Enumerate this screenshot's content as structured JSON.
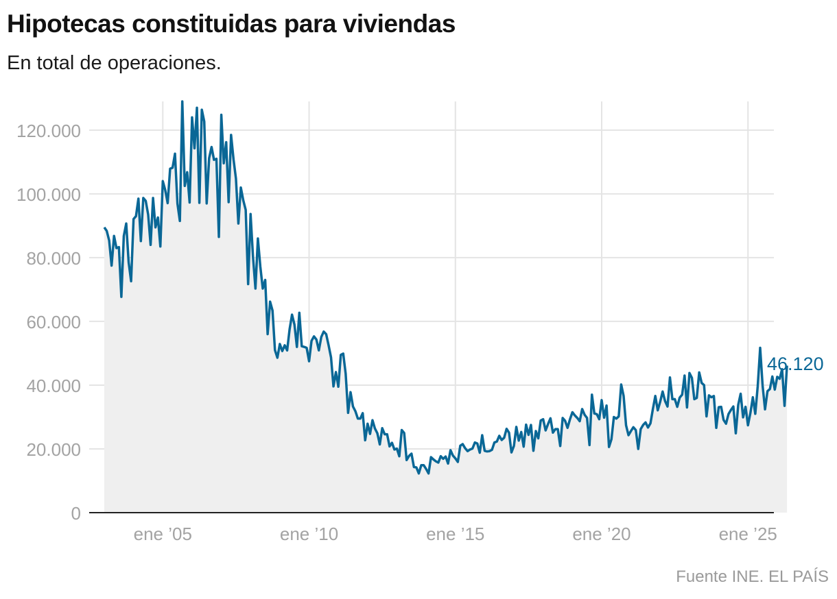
{
  "header": {
    "title": "Hipotecas constituidas para viviendas",
    "subtitle": "En total de operaciones."
  },
  "footer": {
    "source": "Fuente INE. EL PAÍS"
  },
  "colors": {
    "line": "#0a6796",
    "area": "#efefef",
    "grid": "#e4e4e4",
    "axis": "#222222",
    "tick_text": "#a3a3a3"
  },
  "chart_data": {
    "type": "area",
    "title": "Hipotecas constituidas para viviendas",
    "subtitle": "En total de operaciones.",
    "x_axis": {
      "type": "time",
      "range": [
        "2003-01",
        "2025-06"
      ],
      "ticks": [
        {
          "date": "2005-01",
          "label": "ene ’05"
        },
        {
          "date": "2010-01",
          "label": "ene ’10"
        },
        {
          "date": "2015-01",
          "label": "ene ’15"
        },
        {
          "date": "2020-01",
          "label": "ene ’20"
        },
        {
          "date": "2025-01",
          "label": "ene ’25"
        }
      ]
    },
    "y_axis": {
      "range": [
        0,
        129000
      ],
      "ticks": [
        {
          "value": 0,
          "label": "0"
        },
        {
          "value": 20000,
          "label": "20.000"
        },
        {
          "value": 40000,
          "label": "40.000"
        },
        {
          "value": 60000,
          "label": "60.000"
        },
        {
          "value": 80000,
          "label": "80.000"
        },
        {
          "value": 100000,
          "label": "100.000"
        },
        {
          "value": 120000,
          "label": "120.000"
        }
      ]
    },
    "grid": true,
    "last_value_label": "46.120",
    "series": [
      {
        "start": "2003-01",
        "frequency": "monthly",
        "values": [
          89500,
          88400,
          85400,
          77500,
          86800,
          83000,
          83300,
          67700,
          86800,
          90700,
          78500,
          72600,
          92100,
          93000,
          98500,
          85200,
          98700,
          97800,
          93500,
          84000,
          98700,
          89500,
          92600,
          83500,
          104000,
          101200,
          97100,
          107900,
          108200,
          112600,
          97000,
          91500,
          129000,
          102500,
          106800,
          97300,
          124000,
          114300,
          127000,
          97200,
          126400,
          122700,
          97000,
          111200,
          114700,
          110700,
          111000,
          86500,
          124800,
          109600,
          116200,
          97400,
          118500,
          110900,
          104800,
          90700,
          102000,
          98000,
          95000,
          71700,
          93700,
          80200,
          70300,
          86000,
          77200,
          70300,
          73000,
          56000,
          66200,
          63400,
          51000,
          48600,
          52900,
          50700,
          52500,
          50900,
          57500,
          62100,
          59000,
          52000,
          62700,
          52200,
          52000,
          51700,
          47500,
          53900,
          55300,
          54300,
          50900,
          55100,
          56800,
          56000,
          52500,
          48700,
          39600,
          44100,
          39500,
          49500,
          49900,
          43600,
          31300,
          37800,
          33300,
          31800,
          29500,
          29500,
          31200,
          22700,
          27900,
          24700,
          29000,
          26400,
          24900,
          21400,
          26500,
          24600,
          24600,
          20800,
          21900,
          19800,
          20100,
          17700,
          25900,
          25000,
          16500,
          17800,
          18500,
          14300,
          14200,
          12300,
          14900,
          14900,
          13700,
          12300,
          17400,
          16700,
          16100,
          15700,
          17700,
          16900,
          17600,
          15400,
          19600,
          17900,
          17000,
          15900,
          21000,
          21500,
          20200,
          19300,
          19800,
          20100,
          22000,
          21700,
          18800,
          24300,
          19400,
          19200,
          19300,
          19700,
          22000,
          22300,
          24100,
          22800,
          23500,
          26300,
          25100,
          18900,
          20900,
          26900,
          22600,
          25300,
          20700,
          27600,
          24400,
          27500,
          19400,
          25600,
          23300,
          28900,
          29300,
          25800,
          27800,
          29600,
          25100,
          26200,
          26200,
          20900,
          29700,
          28800,
          26600,
          29300,
          31500,
          30500,
          29700,
          28700,
          32500,
          30700,
          29700,
          21200,
          37000,
          31100,
          30900,
          29300,
          35300,
          29800,
          33600,
          20600,
          23000,
          30000,
          29500,
          30200,
          40200,
          36600,
          27400,
          24300,
          25600,
          26800,
          25900,
          20000,
          26200,
          27500,
          28300,
          26700,
          28000,
          32500,
          36600,
          32100,
          34800,
          38000,
          35000,
          33300,
          42400,
          35600,
          35600,
          33200,
          36100,
          37000,
          43000,
          33000,
          43800,
          42300,
          35600,
          36000,
          44000,
          40700,
          40000,
          30200,
          36800,
          36200,
          36600,
          26600,
          33100,
          33200,
          29100,
          27900,
          30900,
          32200,
          33300,
          24900,
          33800,
          37300,
          29900,
          33200,
          27400,
          31300,
          36200,
          31000,
          39700,
          51700,
          39900,
          32400,
          38100,
          38800,
          42700,
          38600,
          42600,
          42000,
          45000,
          33500,
          46120
        ]
      }
    ]
  }
}
